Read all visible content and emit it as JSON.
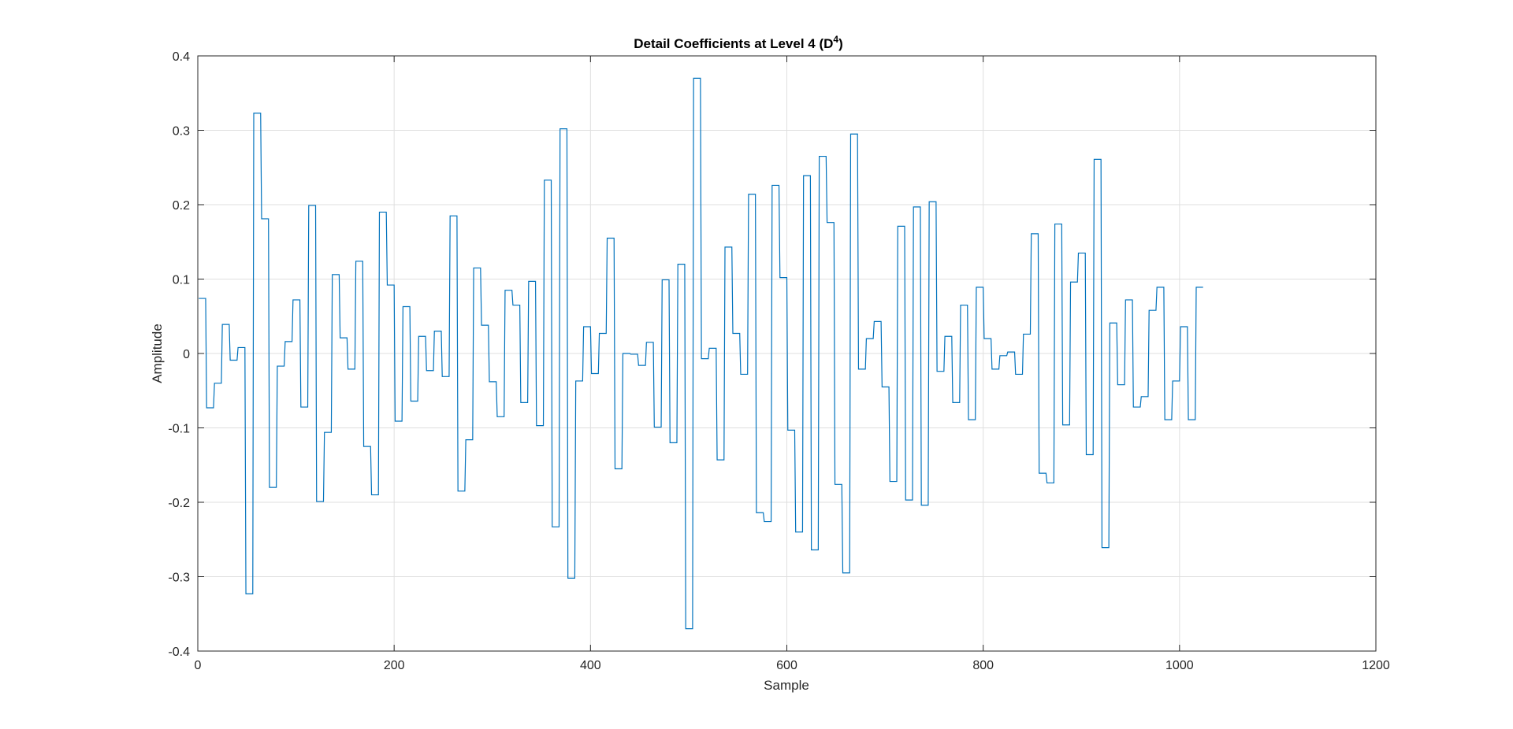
{
  "chart_data": {
    "type": "line",
    "title": "Detail Coefficients at Level 4 (D",
    "title_superscript": "4",
    "title_suffix": ")",
    "xlabel": "Sample",
    "ylabel": "Amplitude",
    "xlim": [
      0,
      1200
    ],
    "ylim": [
      -0.4,
      0.4
    ],
    "xticks": [
      0,
      200,
      400,
      600,
      800,
      1000,
      1200
    ],
    "xtick_labels": [
      "0",
      "200",
      "400",
      "600",
      "800",
      "1000",
      "1200"
    ],
    "yticks": [
      -0.4,
      -0.3,
      -0.2,
      -0.1,
      0,
      0.1,
      0.2,
      0.3,
      0.4
    ],
    "ytick_labels": [
      "-0.4",
      "-0.3",
      "-0.2",
      "-0.1",
      "0",
      "0.1",
      "0.2",
      "0.3",
      "0.4"
    ],
    "grid": true,
    "line_color": "#0072BD",
    "step": 8,
    "values": [
      0.074,
      -0.073,
      -0.04,
      0.039,
      -0.009,
      0.008,
      -0.323,
      0.323,
      0.181,
      -0.18,
      -0.017,
      0.016,
      0.072,
      -0.072,
      0.199,
      -0.199,
      -0.106,
      0.106,
      0.021,
      -0.021,
      0.124,
      -0.125,
      -0.19,
      0.19,
      0.092,
      -0.091,
      0.063,
      -0.064,
      0.023,
      -0.023,
      0.03,
      -0.031,
      0.185,
      -0.185,
      -0.116,
      0.115,
      0.038,
      -0.038,
      -0.085,
      0.085,
      0.065,
      -0.066,
      0.097,
      -0.097,
      0.233,
      -0.233,
      0.302,
      -0.302,
      -0.037,
      0.036,
      -0.027,
      0.027,
      0.155,
      -0.155,
      0.0,
      -0.001,
      -0.016,
      0.015,
      -0.099,
      0.099,
      -0.12,
      0.12,
      -0.37,
      0.37,
      -0.007,
      0.007,
      -0.143,
      0.143,
      0.027,
      -0.028,
      0.214,
      -0.214,
      -0.226,
      0.226,
      0.102,
      -0.103,
      -0.24,
      0.239,
      -0.264,
      0.265,
      0.176,
      -0.176,
      -0.295,
      0.295,
      -0.021,
      0.02,
      0.043,
      -0.045,
      -0.172,
      0.171,
      -0.197,
      0.197,
      -0.204,
      0.204,
      -0.024,
      0.023,
      -0.066,
      0.065,
      -0.089,
      0.089,
      0.02,
      -0.021,
      -0.003,
      0.002,
      -0.028,
      0.026,
      0.161,
      -0.161,
      -0.174,
      0.174,
      -0.096,
      0.096,
      0.135,
      -0.136,
      0.261,
      -0.261,
      0.041,
      -0.042,
      0.072,
      -0.072,
      -0.058,
      0.058,
      0.089,
      -0.089,
      -0.037,
      0.036,
      -0.089,
      0.089
    ]
  }
}
